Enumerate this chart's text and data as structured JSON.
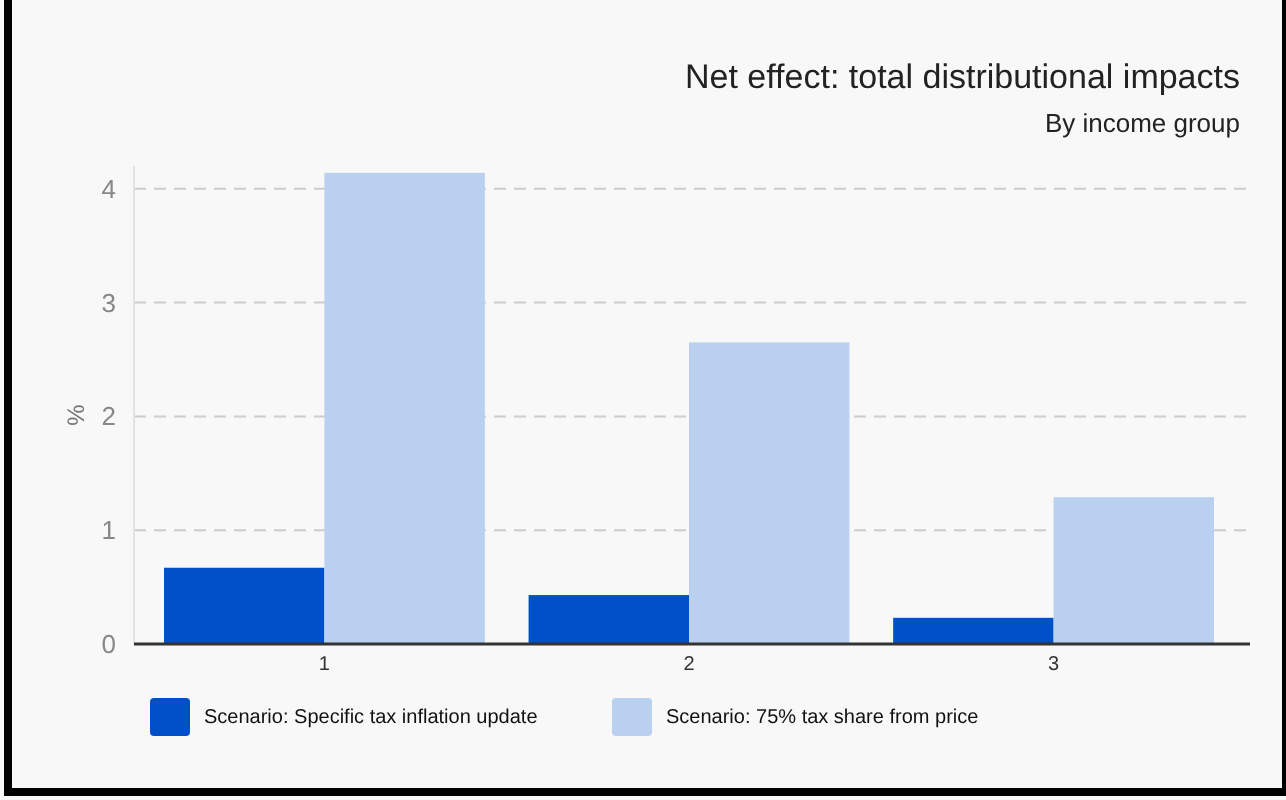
{
  "chart_data": {
    "type": "bar",
    "title": "Net effect: total distributional impacts",
    "subtitle": "By income group",
    "ylabel": "%",
    "categories": [
      "1",
      "2",
      "3"
    ],
    "series": [
      {
        "name": "Scenario: Specific tax inflation update",
        "color": "#0050c8",
        "values": [
          0.67,
          0.43,
          0.23
        ]
      },
      {
        "name": "Scenario: 75% tax share from price",
        "color": "#bad0ef",
        "values": [
          4.14,
          2.65,
          1.29
        ]
      }
    ],
    "ylim": [
      0,
      4.2
    ],
    "yticks": [
      0,
      1,
      2,
      3,
      4
    ],
    "grid": "y",
    "legend": "bottom"
  }
}
